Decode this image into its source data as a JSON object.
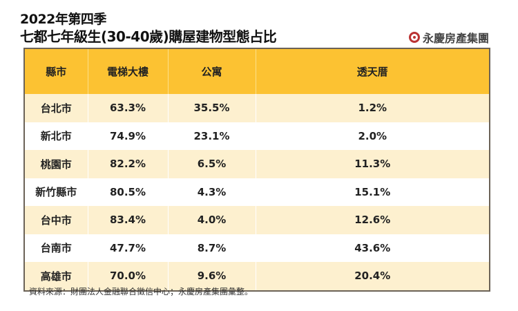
{
  "header": {
    "title_line1": "2022年第四季",
    "title_line2": "七都七年級生(30-40歲)購屋建物型態占比",
    "logo_text": "永慶房產集團",
    "accent": "#fcc232"
  },
  "chart_data": {
    "type": "table",
    "title": "2022年第四季 七都七年級生(30-40歲)購屋建物型態占比",
    "columns": [
      "縣市",
      "電梯大樓",
      "公寓",
      "透天厝"
    ],
    "rows": [
      [
        "台北市",
        "63.3%",
        "35.5%",
        "1.2%"
      ],
      [
        "新北市",
        "74.9%",
        "23.1%",
        "2.0%"
      ],
      [
        "桃園市",
        "82.2%",
        "6.5%",
        "11.3%"
      ],
      [
        "新竹縣市",
        "80.5%",
        "4.3%",
        "15.1%"
      ],
      [
        "台中市",
        "83.4%",
        "4.0%",
        "12.6%"
      ],
      [
        "台南市",
        "47.7%",
        "8.7%",
        "43.6%"
      ],
      [
        "高雄市",
        "70.0%",
        "9.6%",
        "20.4%"
      ]
    ]
  },
  "footer": {
    "source": "資料來源：財團法人金融聯合徵信中心；永慶房產集團彙整。"
  }
}
